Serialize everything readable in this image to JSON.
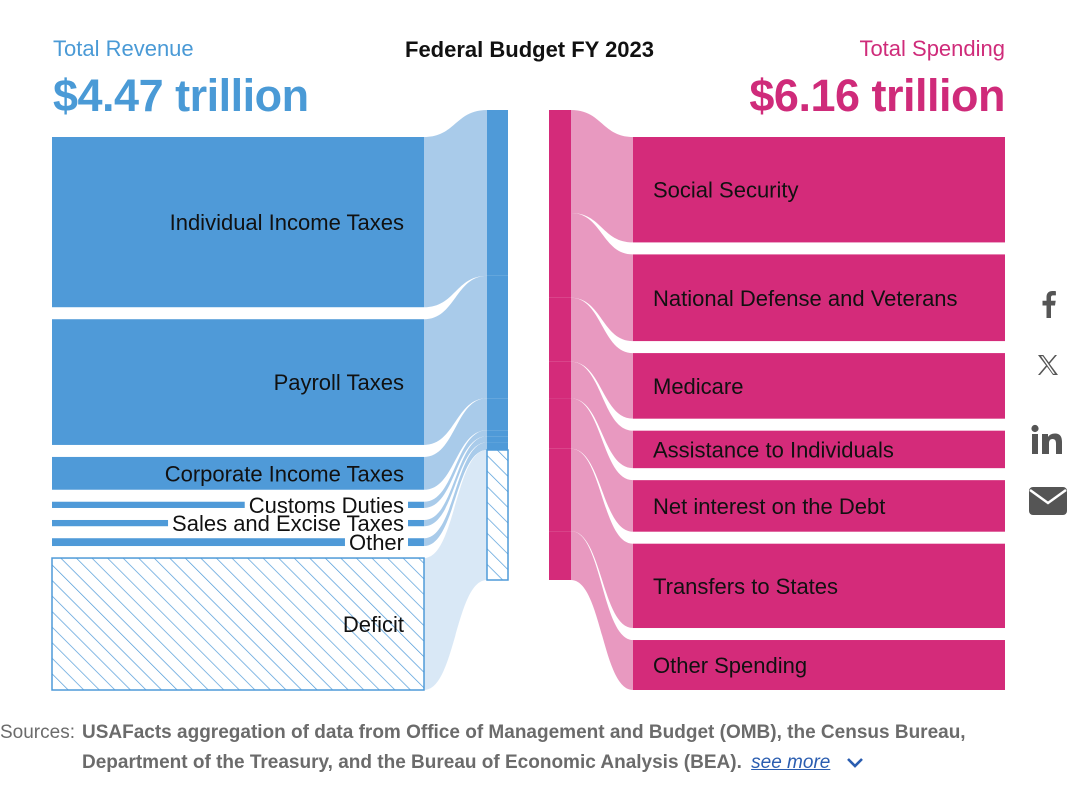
{
  "header": {
    "revenue_label": "Total Revenue",
    "revenue_total": "$4.47 trillion",
    "title": "Federal Budget FY 2023",
    "spending_label": "Total Spending",
    "spending_total": "$6.16 trillion"
  },
  "colors": {
    "revenue": "#4f9ad8",
    "revenue_light": "#a9cbea",
    "revenue_faint": "#d9e8f6",
    "spending": "#d42b7a",
    "spending_light": "#e899c0",
    "revenue_header": "#4a9ad6",
    "spending_header": "#cf2b7a"
  },
  "chart_data": {
    "type": "sankey",
    "title": "Federal Budget FY 2023",
    "revenue": [
      {
        "name": "Individual Income Taxes",
        "value": 2.18
      },
      {
        "name": "Payroll Taxes",
        "value": 1.61
      },
      {
        "name": "Corporate Income Taxes",
        "value": 0.42
      },
      {
        "name": "Customs Duties",
        "value": 0.08
      },
      {
        "name": "Sales and Excise Taxes",
        "value": 0.08
      },
      {
        "name": "Other",
        "value": 0.1
      },
      {
        "name": "Deficit",
        "value": 1.69,
        "hatched": true
      }
    ],
    "spending": [
      {
        "name": "Social Security",
        "value": 1.35
      },
      {
        "name": "National Defense and Veterans",
        "value": 1.11
      },
      {
        "name": "Medicare",
        "value": 0.84
      },
      {
        "name": "Assistance to Individuals",
        "value": 0.48
      },
      {
        "name": "Net interest on the Debt",
        "value": 0.66
      },
      {
        "name": "Transfers to States",
        "value": 1.08
      },
      {
        "name": "Other Spending",
        "value": 0.64
      }
    ]
  },
  "share": {
    "facebook_icon": "facebook-icon",
    "x_icon": "x-icon",
    "linkedin_icon": "linkedin-icon",
    "email_icon": "email-icon"
  },
  "sources": {
    "label": "Sources:",
    "text": "USAFacts aggregation of data from Office of Management and Budget (OMB), the Census Bureau, Department of the Treasury, and the Bureau of Economic Analysis (BEA).",
    "see_more": "see more"
  }
}
